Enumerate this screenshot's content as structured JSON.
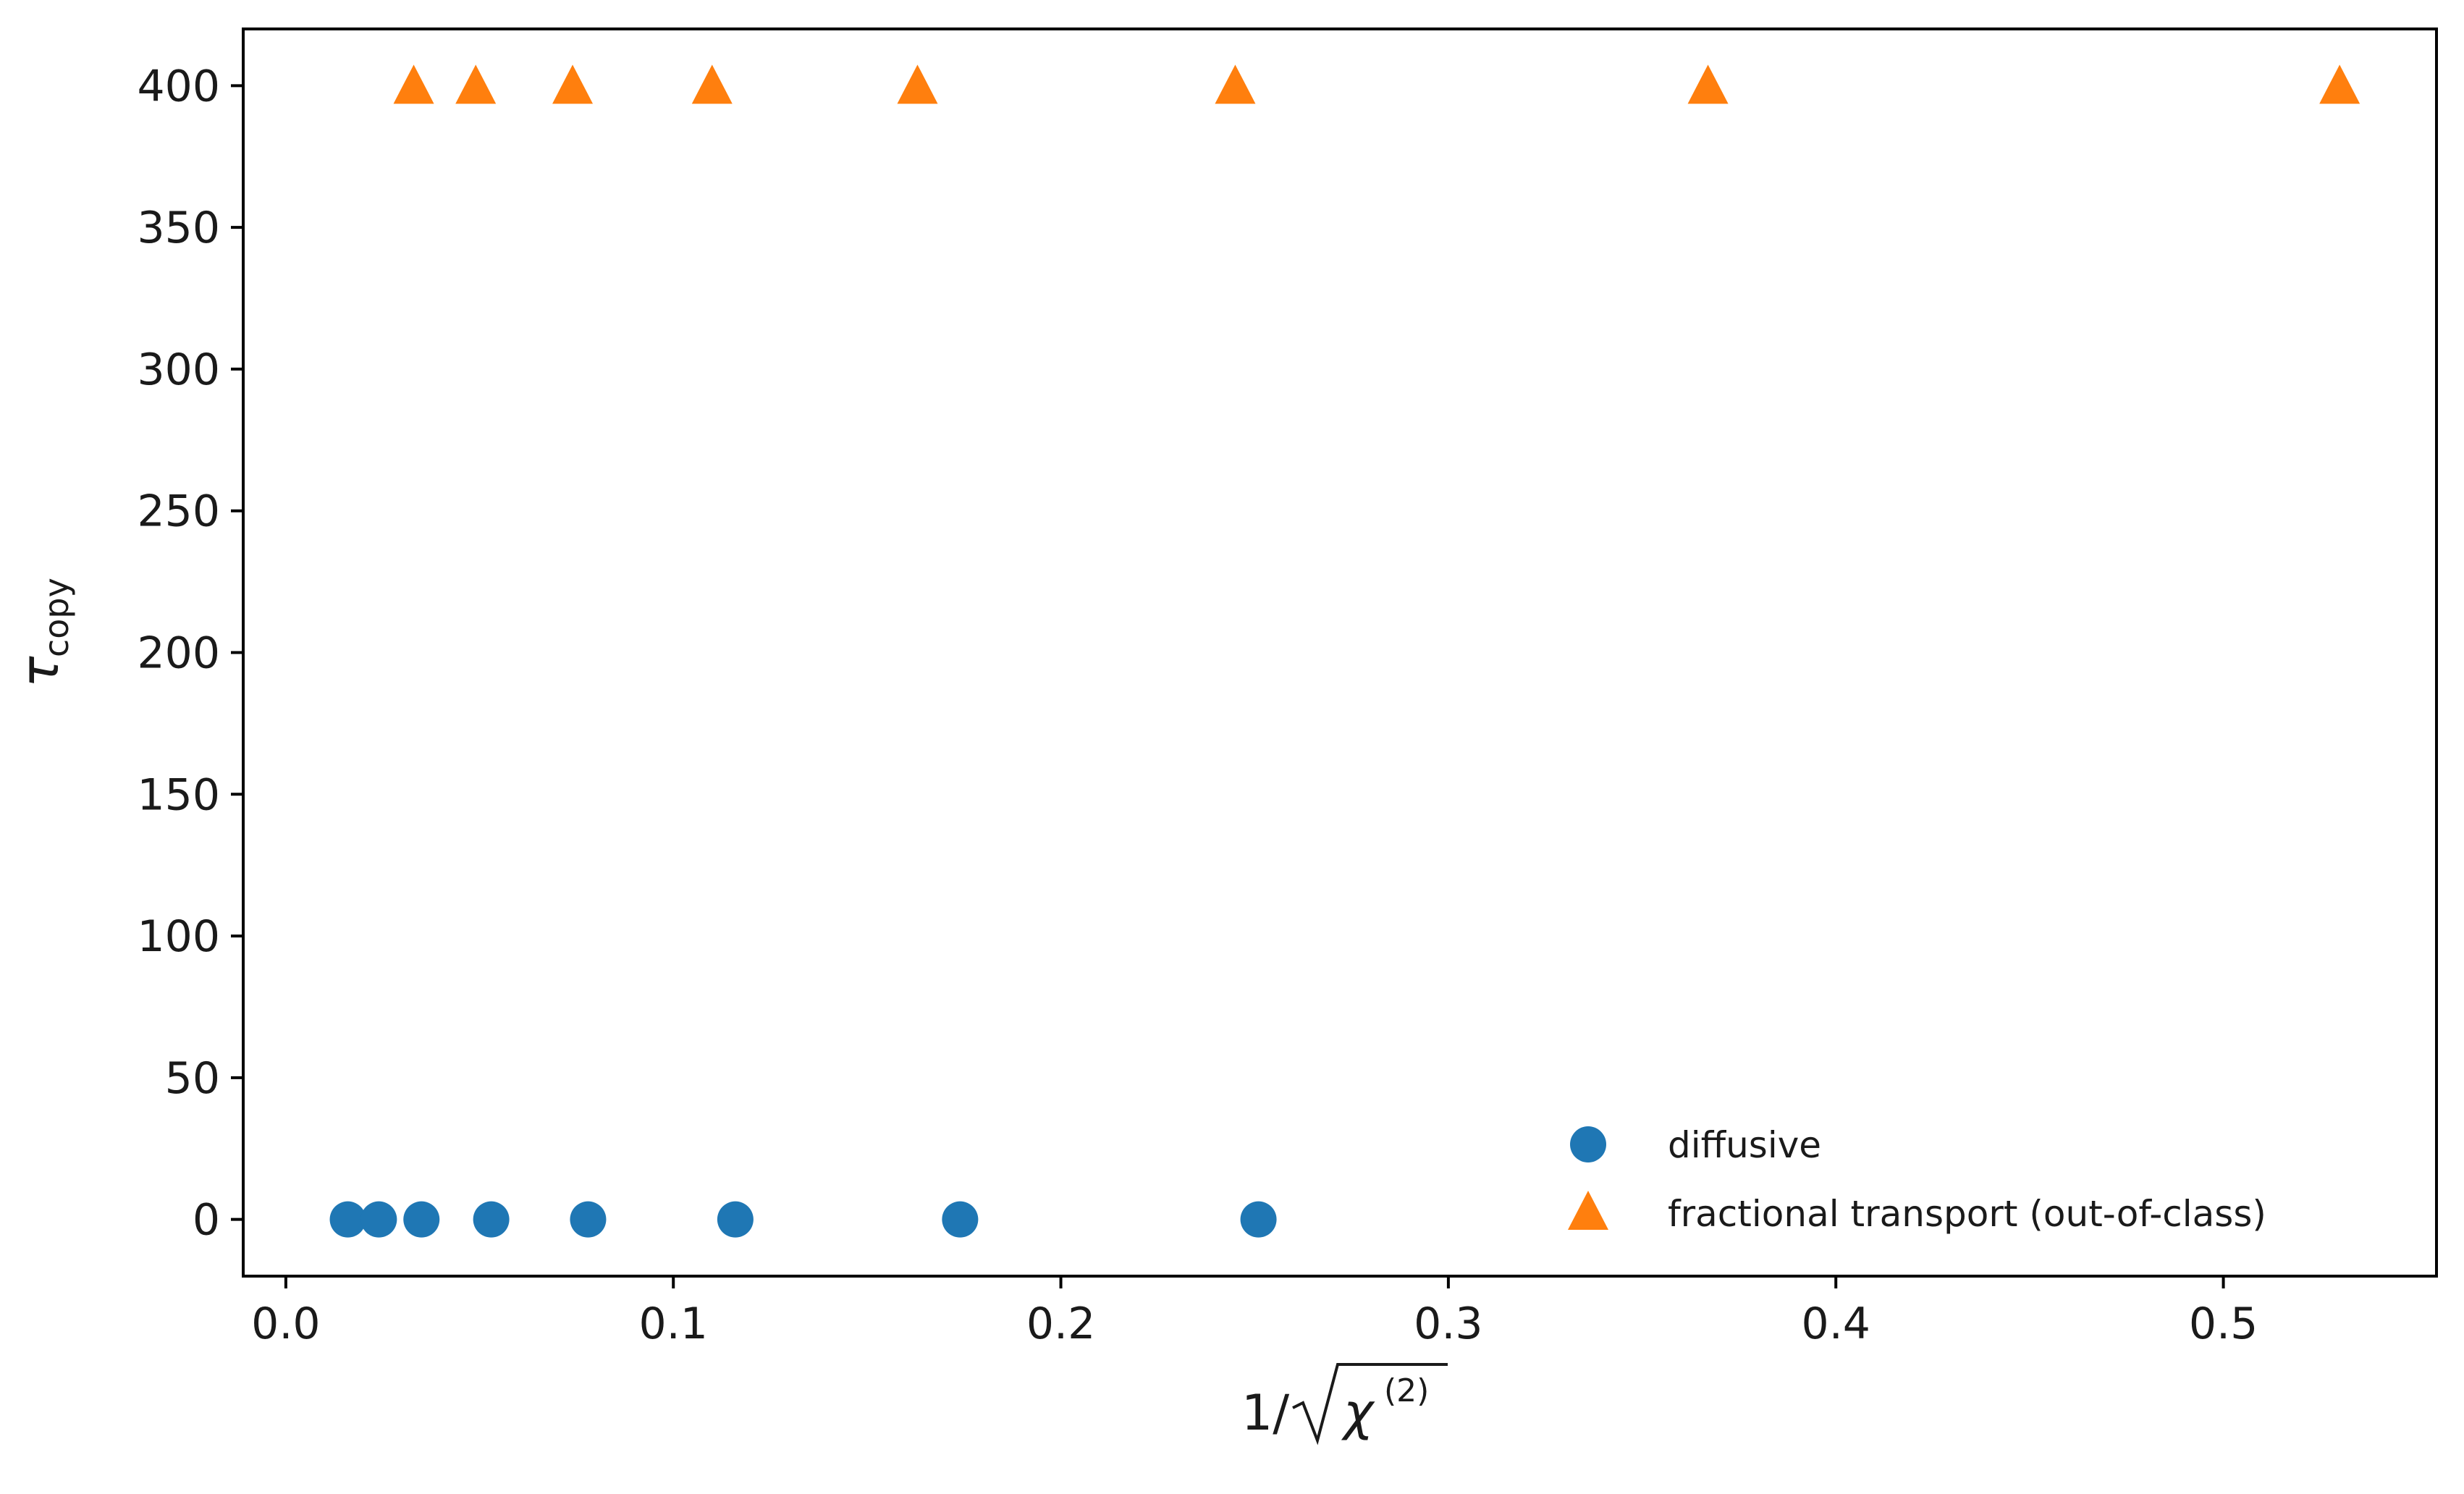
{
  "chart_data": {
    "type": "scatter",
    "title": "",
    "xlabel": "1/√χ⁽²⁾",
    "xlabel_parts": {
      "prefix": "1/",
      "radicand": "χ",
      "superscript": "(2)"
    },
    "ylabel": "τcopy",
    "ylabel_parts": {
      "symbol": "τ",
      "subscript": "copy"
    },
    "xlim": [
      -0.011,
      0.555
    ],
    "ylim": [
      -20,
      420
    ],
    "xticks": [
      0.0,
      0.1,
      0.2,
      0.3,
      0.4,
      0.5
    ],
    "xtick_labels": [
      "0.0",
      "0.1",
      "0.2",
      "0.3",
      "0.4",
      "0.5"
    ],
    "yticks": [
      0,
      50,
      100,
      150,
      200,
      250,
      300,
      350,
      400
    ],
    "ytick_labels": [
      "0",
      "50",
      "100",
      "150",
      "200",
      "250",
      "300",
      "350",
      "400"
    ],
    "grid": false,
    "legend_position": "lower right",
    "series": [
      {
        "name": "diffusive",
        "marker": "circle",
        "color": "#1f77b4",
        "x": [
          0.016,
          0.024,
          0.035,
          0.053,
          0.078,
          0.116,
          0.174,
          0.251
        ],
        "y": [
          0,
          0,
          0,
          0,
          0,
          0,
          0,
          0
        ]
      },
      {
        "name": "fractional transport (out-of-class)",
        "marker": "triangle",
        "color": "#ff7f0e",
        "x": [
          0.033,
          0.049,
          0.074,
          0.11,
          0.163,
          0.245,
          0.367,
          0.53
        ],
        "y": [
          400,
          400,
          400,
          400,
          400,
          400,
          400,
          400
        ]
      }
    ]
  }
}
